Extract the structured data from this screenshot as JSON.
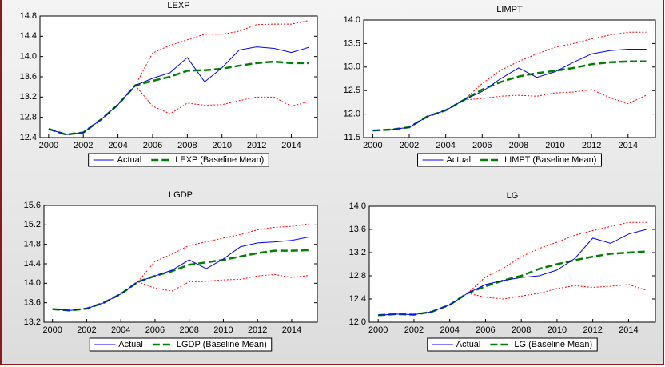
{
  "chart_data": [
    {
      "type": "line",
      "title": "LEXP",
      "x": [
        2000,
        2001,
        2002,
        2003,
        2004,
        2005,
        2006,
        2007,
        2008,
        2009,
        2010,
        2011,
        2012,
        2013,
        2014,
        2015
      ],
      "xlim": [
        1999.5,
        2015.5
      ],
      "xticks": [
        2000,
        2002,
        2004,
        2006,
        2008,
        2010,
        2012,
        2014
      ],
      "ylim": [
        12.4,
        14.8
      ],
      "yticks": [
        12.4,
        12.8,
        13.2,
        13.6,
        {
          "value": 14,
          "label": "14.0"
        },
        14.4,
        14.8
      ],
      "series": [
        {
          "name": "Actual",
          "color": "#0000ff",
          "style": "solid",
          "values": [
            12.57,
            12.46,
            12.5,
            12.75,
            13.05,
            13.43,
            13.57,
            13.68,
            13.98,
            13.5,
            13.78,
            14.13,
            14.19,
            14.16,
            14.08,
            14.18
          ]
        },
        {
          "name": "LEXP (Baseline Mean)",
          "color": "#008000",
          "style": "dashed",
          "values": [
            12.57,
            12.46,
            12.5,
            12.75,
            13.05,
            13.43,
            13.52,
            13.6,
            13.72,
            13.73,
            13.76,
            13.82,
            13.87,
            13.9,
            13.87,
            13.87
          ]
        },
        {
          "color": "#ff0000",
          "style": "dotted",
          "values": [
            null,
            null,
            null,
            null,
            null,
            13.43,
            14.07,
            14.22,
            14.33,
            14.44,
            14.44,
            14.5,
            14.63,
            14.64,
            14.64,
            14.71
          ]
        },
        {
          "color": "#ff0000",
          "style": "dotted",
          "values": [
            null,
            null,
            null,
            null,
            null,
            13.43,
            13.02,
            12.87,
            13.08,
            13.04,
            13.05,
            13.13,
            13.2,
            13.2,
            13.02,
            13.11
          ]
        }
      ]
    },
    {
      "type": "line",
      "title": "LIMPT",
      "x": [
        2000,
        2001,
        2002,
        2003,
        2004,
        2005,
        2006,
        2007,
        2008,
        2009,
        2010,
        2011,
        2012,
        2013,
        2014,
        2015
      ],
      "xlim": [
        1999.5,
        2015.5
      ],
      "xticks": [
        2000,
        2002,
        2004,
        2006,
        2008,
        2010,
        2012,
        2014
      ],
      "ylim": [
        11.5,
        14
      ],
      "yticks": [
        11.5,
        {
          "value": 12,
          "label": "12.0"
        },
        12.5,
        {
          "value": 13,
          "label": "13.0"
        },
        13.5,
        {
          "value": 14,
          "label": "14.0"
        }
      ],
      "series": [
        {
          "name": "Actual",
          "color": "#0000ff",
          "style": "solid",
          "values": [
            11.65,
            11.67,
            11.72,
            11.95,
            12.08,
            12.3,
            12.48,
            12.75,
            12.98,
            12.78,
            12.9,
            13.1,
            13.28,
            13.35,
            13.38,
            13.38
          ]
        },
        {
          "name": "LIMPT (Baseline Mean)",
          "color": "#008000",
          "style": "dashed",
          "values": [
            11.65,
            11.67,
            11.72,
            11.95,
            12.08,
            12.3,
            12.52,
            12.68,
            12.8,
            12.87,
            12.92,
            12.98,
            13.06,
            13.1,
            13.12,
            13.12
          ]
        },
        {
          "color": "#ff0000",
          "style": "dotted",
          "values": [
            null,
            null,
            null,
            null,
            null,
            12.3,
            12.65,
            12.93,
            13.12,
            13.28,
            13.42,
            13.5,
            13.6,
            13.68,
            13.74,
            13.74
          ]
        },
        {
          "color": "#ff0000",
          "style": "dotted",
          "values": [
            null,
            null,
            null,
            null,
            null,
            12.3,
            12.33,
            12.38,
            12.4,
            12.38,
            12.45,
            12.47,
            12.52,
            12.35,
            12.22,
            12.4
          ]
        }
      ]
    },
    {
      "type": "line",
      "title": "LGDP",
      "x": [
        2000,
        2001,
        2002,
        2003,
        2004,
        2005,
        2006,
        2007,
        2008,
        2009,
        2010,
        2011,
        2012,
        2013,
        2014,
        2015
      ],
      "xlim": [
        1999.5,
        2015.5
      ],
      "xticks": [
        2000,
        2002,
        2004,
        2006,
        2008,
        2010,
        2012,
        2014
      ],
      "ylim": [
        13.2,
        15.6
      ],
      "yticks": [
        13.2,
        13.6,
        {
          "value": 14,
          "label": "14.0"
        },
        14.4,
        14.8,
        15.2,
        15.6
      ],
      "series": [
        {
          "name": "Actual",
          "color": "#0000ff",
          "style": "solid",
          "values": [
            13.47,
            13.44,
            13.48,
            13.6,
            13.78,
            14.03,
            14.15,
            14.27,
            14.48,
            14.3,
            14.5,
            14.75,
            14.83,
            14.85,
            14.88,
            14.95
          ]
        },
        {
          "name": "LGDP (Baseline Mean)",
          "color": "#008000",
          "style": "dashed",
          "values": [
            13.47,
            13.44,
            13.48,
            13.6,
            13.78,
            14.03,
            14.15,
            14.25,
            14.38,
            14.43,
            14.48,
            14.55,
            14.62,
            14.67,
            14.67,
            14.68
          ]
        },
        {
          "color": "#ff0000",
          "style": "dotted",
          "values": [
            null,
            null,
            null,
            null,
            null,
            14.03,
            14.45,
            14.6,
            14.78,
            14.85,
            14.93,
            15.0,
            15.1,
            15.15,
            15.17,
            15.22
          ]
        },
        {
          "color": "#ff0000",
          "style": "dotted",
          "values": [
            null,
            null,
            null,
            null,
            null,
            14.03,
            13.9,
            13.84,
            14.03,
            14.04,
            14.07,
            14.08,
            14.15,
            14.18,
            14.12,
            14.16
          ]
        }
      ]
    },
    {
      "type": "line",
      "title": "LG",
      "x": [
        2000,
        2001,
        2002,
        2003,
        2004,
        2005,
        2006,
        2007,
        2008,
        2009,
        2010,
        2011,
        2012,
        2013,
        2014,
        2015
      ],
      "xlim": [
        1999.5,
        2015.5
      ],
      "xticks": [
        2000,
        2002,
        2004,
        2006,
        2008,
        2010,
        2012,
        2014
      ],
      "ylim": [
        12,
        14
      ],
      "yticks": [
        {
          "value": 12,
          "label": "12.0"
        },
        12.4,
        12.8,
        13.2,
        13.6,
        {
          "value": 14,
          "label": "14.0"
        }
      ],
      "series": [
        {
          "name": "Actual",
          "color": "#0000ff",
          "style": "solid",
          "values": [
            12.12,
            12.14,
            12.13,
            12.18,
            12.3,
            12.5,
            12.65,
            12.72,
            12.77,
            12.8,
            12.9,
            13.1,
            13.45,
            13.36,
            13.52,
            13.6
          ]
        },
        {
          "name": "LG (Baseline Mean)",
          "color": "#008000",
          "style": "dashed",
          "values": [
            12.12,
            12.14,
            12.13,
            12.18,
            12.3,
            12.5,
            12.62,
            12.72,
            12.8,
            12.92,
            13.0,
            13.07,
            13.13,
            13.18,
            13.2,
            13.22
          ]
        },
        {
          "color": "#ff0000",
          "style": "dotted",
          "values": [
            null,
            null,
            null,
            null,
            null,
            12.5,
            12.78,
            12.93,
            13.13,
            13.27,
            13.38,
            13.5,
            13.58,
            13.65,
            13.72,
            13.72
          ]
        },
        {
          "color": "#ff0000",
          "style": "dotted",
          "values": [
            null,
            null,
            null,
            null,
            null,
            12.5,
            12.43,
            12.4,
            12.45,
            12.5,
            12.58,
            12.63,
            12.6,
            12.62,
            12.65,
            12.55
          ]
        }
      ]
    }
  ]
}
